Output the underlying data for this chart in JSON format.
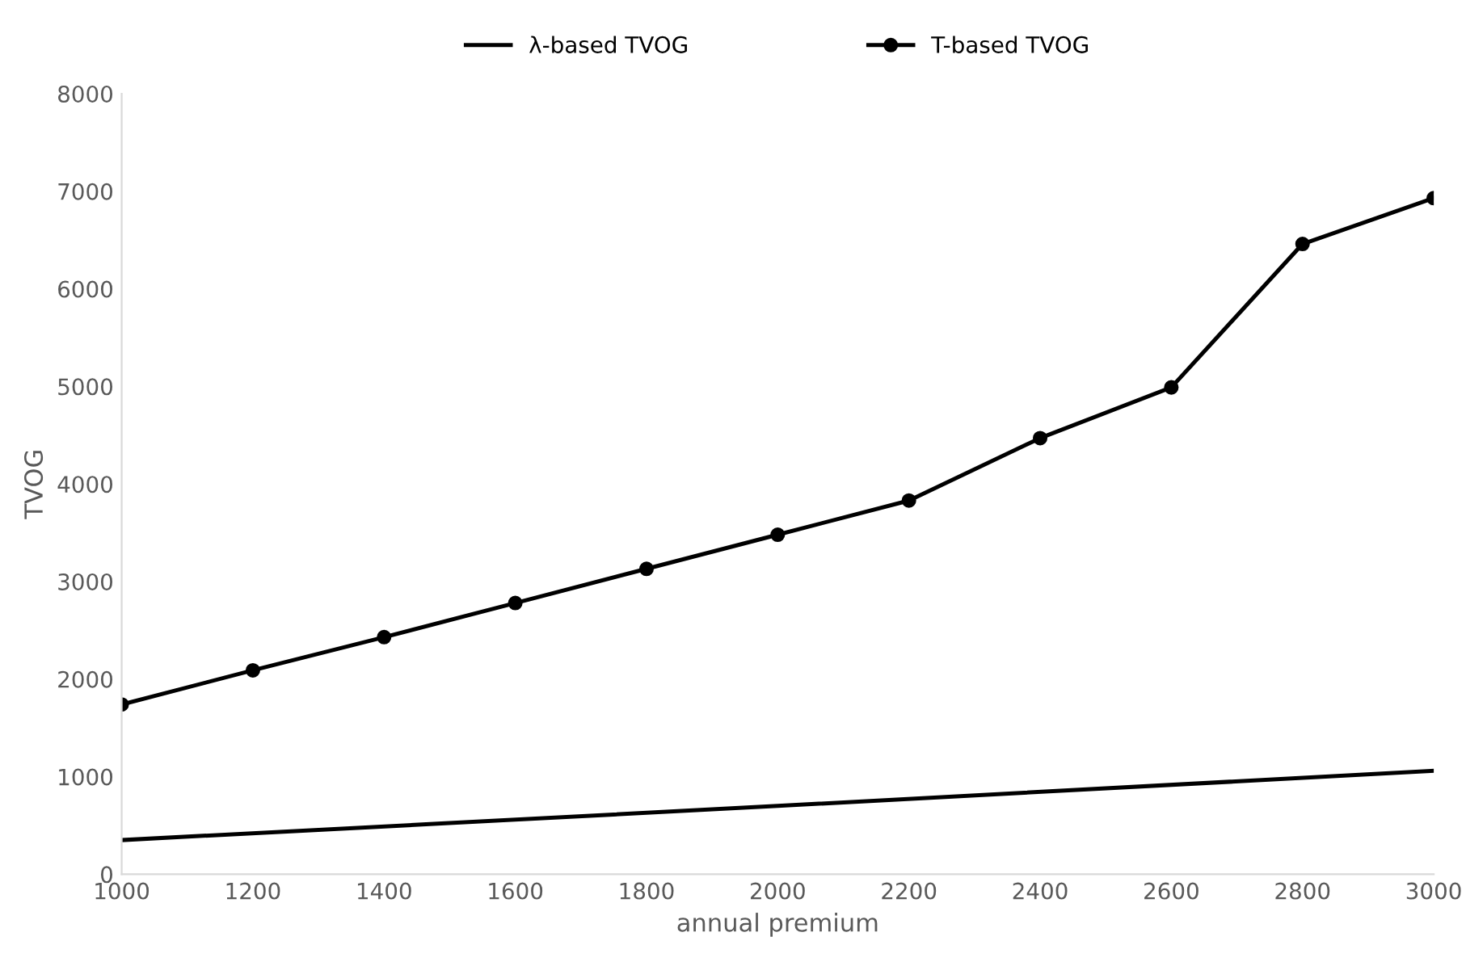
{
  "chart_data": {
    "type": "line",
    "xlabel": "annual premium",
    "ylabel": "TVOG",
    "xlim": [
      1000,
      3000
    ],
    "xticks": [
      1000,
      1200,
      1400,
      1600,
      1800,
      2000,
      2200,
      2400,
      2600,
      2800,
      3000
    ],
    "ylim": [
      0,
      8000
    ],
    "yticks": [
      0,
      1000,
      2000,
      3000,
      4000,
      5000,
      6000,
      7000,
      8000
    ],
    "grid": false,
    "legend": "top",
    "series": [
      {
        "name": "λ-based TVOG",
        "color": "#000000",
        "marker": "none",
        "x": [
          1000,
          2000,
          3000
        ],
        "values": [
          350,
          700,
          1060
        ]
      },
      {
        "name": "T-based TVOG",
        "color": "#000000",
        "marker": "circle",
        "x": [
          1000,
          1200,
          1400,
          1600,
          1800,
          2000,
          2200,
          2400,
          2600,
          2800,
          3000
        ],
        "values": [
          1740,
          2090,
          2430,
          2780,
          3130,
          3480,
          3830,
          4470,
          4990,
          6460,
          6930
        ]
      }
    ]
  }
}
